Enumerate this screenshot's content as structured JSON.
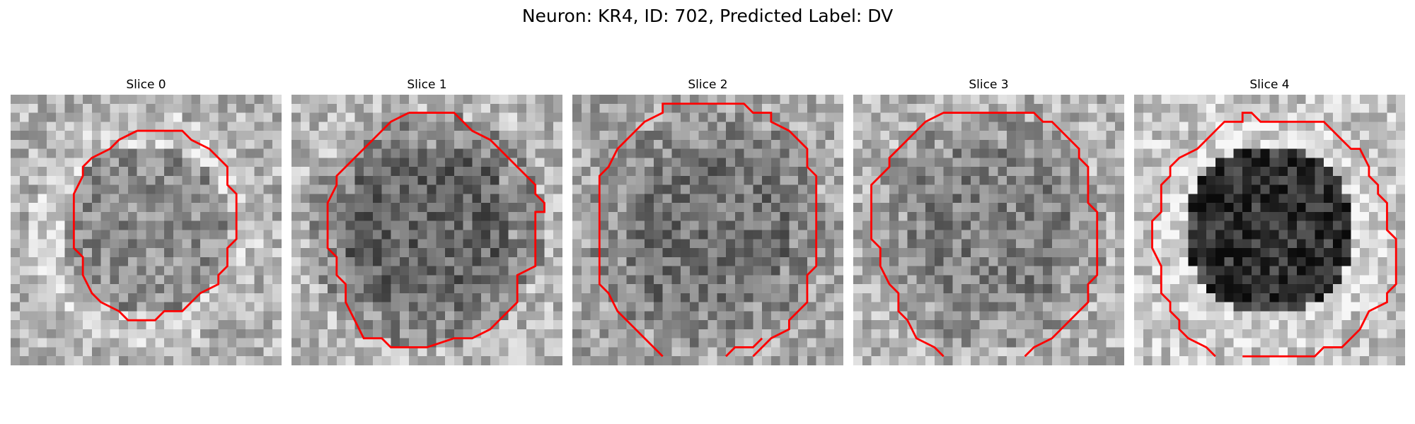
{
  "figure": {
    "title": "Neuron: KR4, ID: 702, Predicted Label: DV",
    "contour_color": "#ff0000",
    "slices": [
      {
        "title": "Slice 0",
        "seed": 11,
        "dark": 0.55,
        "ring": 0.78,
        "bg": 0.7
      },
      {
        "title": "Slice 1",
        "seed": 23,
        "dark": 0.4,
        "ring": 0.55,
        "bg": 0.72
      },
      {
        "title": "Slice 2",
        "seed": 37,
        "dark": 0.45,
        "ring": 0.55,
        "bg": 0.65
      },
      {
        "title": "Slice 3",
        "seed": 41,
        "dark": 0.5,
        "ring": 0.6,
        "bg": 0.7
      },
      {
        "title": "Slice 4",
        "seed": 59,
        "dark": 0.2,
        "ring": 0.85,
        "bg": 0.78
      }
    ]
  }
}
